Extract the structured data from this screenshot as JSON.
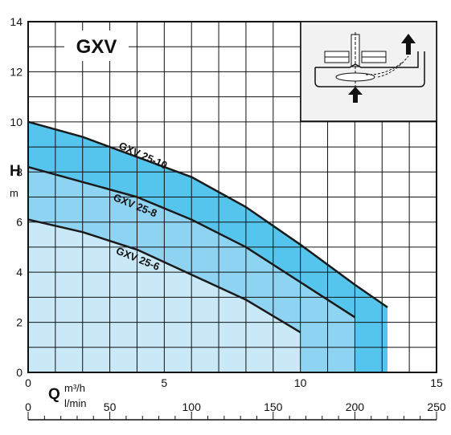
{
  "chart_data": {
    "type": "area",
    "title": "GXV",
    "ylabel": "H",
    "ylabel_unit": "m",
    "xlabel": "Q",
    "x_unit_top": "m³/h",
    "x_unit_bottom": "l/min",
    "xlim": [
      0,
      15
    ],
    "ylim": [
      0,
      14
    ],
    "xlim_secondary": [
      0,
      250
    ],
    "x_ticks": [
      "0",
      "5",
      "10",
      "15"
    ],
    "y_ticks": [
      "0",
      "2",
      "4",
      "6",
      "8",
      "10",
      "12",
      "14"
    ],
    "x2_ticks": [
      "0",
      "50",
      "100",
      "150",
      "200",
      "250"
    ],
    "grid": true,
    "colors": {
      "band_25_6": "#c9e9f8",
      "band_25_8": "#8fd3f2",
      "band_25_10": "#55c5ee",
      "curve": "#1a1a1a",
      "grid": "#111111"
    },
    "series": [
      {
        "name": "GXV 25-6",
        "x": [
          0,
          2,
          4,
          6,
          8,
          10
        ],
        "y": [
          6.1,
          5.6,
          4.9,
          3.9,
          2.9,
          1.6
        ]
      },
      {
        "name": "GXV 25-8",
        "x": [
          0,
          2,
          4,
          6,
          8,
          10,
          12
        ],
        "y": [
          8.2,
          7.6,
          7.0,
          6.1,
          5.0,
          3.6,
          2.2
        ]
      },
      {
        "name": "GXV 25-10",
        "x": [
          0,
          2,
          4,
          6,
          8,
          10,
          12,
          13.2
        ],
        "y": [
          10.0,
          9.4,
          8.6,
          7.8,
          6.6,
          5.1,
          3.5,
          2.6
        ]
      }
    ]
  }
}
